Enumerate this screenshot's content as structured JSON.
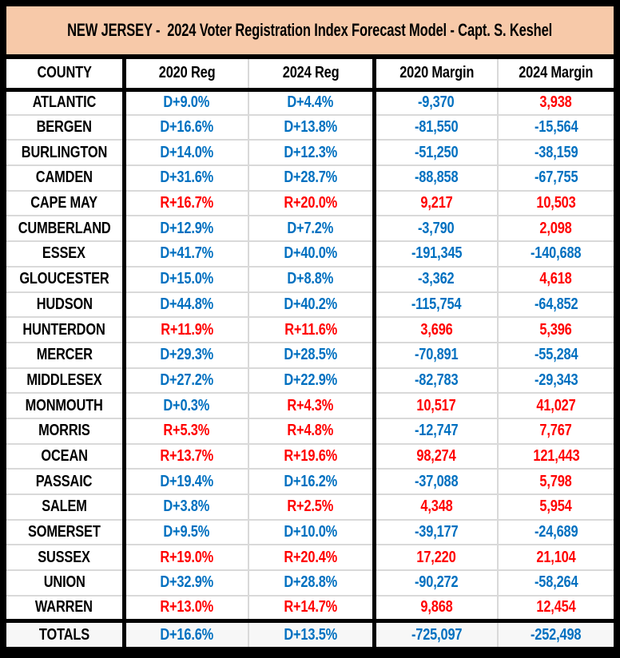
{
  "title": "NEW JERSEY -  2024 Voter Registration Index Forecast Model - Capt. S. Keshel",
  "colors": {
    "democrat_text": "#0070C0",
    "republican_text": "#FF0000",
    "title_background": "#F7C9A9",
    "frame_border": "#000000",
    "row_divider": "#D9D9D9"
  },
  "chart_data": {
    "type": "table",
    "title": "NEW JERSEY - 2024 Voter Registration Index Forecast Model - Capt. S. Keshel",
    "columns": [
      "COUNTY",
      "2020 Reg",
      "2024 Reg",
      "2020 Margin",
      "2024 Margin"
    ],
    "rows": [
      {
        "county": "ATLANTIC",
        "values": [
          {
            "text": "D+9.0%",
            "party": "D"
          },
          {
            "text": "D+4.4%",
            "party": "D"
          },
          {
            "text": "-9,370",
            "party": "D"
          },
          {
            "text": "3,938",
            "party": "R"
          }
        ]
      },
      {
        "county": "BERGEN",
        "values": [
          {
            "text": "D+16.6%",
            "party": "D"
          },
          {
            "text": "D+13.8%",
            "party": "D"
          },
          {
            "text": "-81,550",
            "party": "D"
          },
          {
            "text": "-15,564",
            "party": "D"
          }
        ]
      },
      {
        "county": "BURLINGTON",
        "values": [
          {
            "text": "D+14.0%",
            "party": "D"
          },
          {
            "text": "D+12.3%",
            "party": "D"
          },
          {
            "text": "-51,250",
            "party": "D"
          },
          {
            "text": "-38,159",
            "party": "D"
          }
        ]
      },
      {
        "county": "CAMDEN",
        "values": [
          {
            "text": "D+31.6%",
            "party": "D"
          },
          {
            "text": "D+28.7%",
            "party": "D"
          },
          {
            "text": "-88,858",
            "party": "D"
          },
          {
            "text": "-67,755",
            "party": "D"
          }
        ]
      },
      {
        "county": "CAPE MAY",
        "values": [
          {
            "text": "R+16.7%",
            "party": "R"
          },
          {
            "text": "R+20.0%",
            "party": "R"
          },
          {
            "text": "9,217",
            "party": "R"
          },
          {
            "text": "10,503",
            "party": "R"
          }
        ]
      },
      {
        "county": "CUMBERLAND",
        "values": [
          {
            "text": "D+12.9%",
            "party": "D"
          },
          {
            "text": "D+7.2%",
            "party": "D"
          },
          {
            "text": "-3,790",
            "party": "D"
          },
          {
            "text": "2,098",
            "party": "R"
          }
        ]
      },
      {
        "county": "ESSEX",
        "values": [
          {
            "text": "D+41.7%",
            "party": "D"
          },
          {
            "text": "D+40.0%",
            "party": "D"
          },
          {
            "text": "-191,345",
            "party": "D"
          },
          {
            "text": "-140,688",
            "party": "D"
          }
        ]
      },
      {
        "county": "GLOUCESTER",
        "values": [
          {
            "text": "D+15.0%",
            "party": "D"
          },
          {
            "text": "D+8.8%",
            "party": "D"
          },
          {
            "text": "-3,362",
            "party": "D"
          },
          {
            "text": "4,618",
            "party": "R"
          }
        ]
      },
      {
        "county": "HUDSON",
        "values": [
          {
            "text": "D+44.8%",
            "party": "D"
          },
          {
            "text": "D+40.2%",
            "party": "D"
          },
          {
            "text": "-115,754",
            "party": "D"
          },
          {
            "text": "-64,852",
            "party": "D"
          }
        ]
      },
      {
        "county": "HUNTERDON",
        "values": [
          {
            "text": "R+11.9%",
            "party": "R"
          },
          {
            "text": "R+11.6%",
            "party": "R"
          },
          {
            "text": "3,696",
            "party": "R"
          },
          {
            "text": "5,396",
            "party": "R"
          }
        ]
      },
      {
        "county": "MERCER",
        "values": [
          {
            "text": "D+29.3%",
            "party": "D"
          },
          {
            "text": "D+28.5%",
            "party": "D"
          },
          {
            "text": "-70,891",
            "party": "D"
          },
          {
            "text": "-55,284",
            "party": "D"
          }
        ]
      },
      {
        "county": "MIDDLESEX",
        "values": [
          {
            "text": "D+27.2%",
            "party": "D"
          },
          {
            "text": "D+22.9%",
            "party": "D"
          },
          {
            "text": "-82,783",
            "party": "D"
          },
          {
            "text": "-29,343",
            "party": "D"
          }
        ]
      },
      {
        "county": "MONMOUTH",
        "values": [
          {
            "text": "D+0.3%",
            "party": "D"
          },
          {
            "text": "R+4.3%",
            "party": "R"
          },
          {
            "text": "10,517",
            "party": "R"
          },
          {
            "text": "41,027",
            "party": "R"
          }
        ]
      },
      {
        "county": "MORRIS",
        "values": [
          {
            "text": "R+5.3%",
            "party": "R"
          },
          {
            "text": "R+4.8%",
            "party": "R"
          },
          {
            "text": "-12,747",
            "party": "D"
          },
          {
            "text": "7,767",
            "party": "R"
          }
        ]
      },
      {
        "county": "OCEAN",
        "values": [
          {
            "text": "R+13.7%",
            "party": "R"
          },
          {
            "text": "R+19.6%",
            "party": "R"
          },
          {
            "text": "98,274",
            "party": "R"
          },
          {
            "text": "121,443",
            "party": "R"
          }
        ]
      },
      {
        "county": "PASSAIC",
        "values": [
          {
            "text": "D+19.4%",
            "party": "D"
          },
          {
            "text": "D+16.2%",
            "party": "D"
          },
          {
            "text": "-37,088",
            "party": "D"
          },
          {
            "text": "5,798",
            "party": "R"
          }
        ]
      },
      {
        "county": "SALEM",
        "values": [
          {
            "text": "D+3.8%",
            "party": "D"
          },
          {
            "text": "R+2.5%",
            "party": "R"
          },
          {
            "text": "4,348",
            "party": "R"
          },
          {
            "text": "5,954",
            "party": "R"
          }
        ]
      },
      {
        "county": "SOMERSET",
        "values": [
          {
            "text": "D+9.5%",
            "party": "D"
          },
          {
            "text": "D+10.0%",
            "party": "D"
          },
          {
            "text": "-39,177",
            "party": "D"
          },
          {
            "text": "-24,689",
            "party": "D"
          }
        ]
      },
      {
        "county": "SUSSEX",
        "values": [
          {
            "text": "R+19.0%",
            "party": "R"
          },
          {
            "text": "R+20.4%",
            "party": "R"
          },
          {
            "text": "17,220",
            "party": "R"
          },
          {
            "text": "21,104",
            "party": "R"
          }
        ]
      },
      {
        "county": "UNION",
        "values": [
          {
            "text": "D+32.9%",
            "party": "D"
          },
          {
            "text": "D+28.8%",
            "party": "D"
          },
          {
            "text": "-90,272",
            "party": "D"
          },
          {
            "text": "-58,264",
            "party": "D"
          }
        ]
      },
      {
        "county": "WARREN",
        "values": [
          {
            "text": "R+13.0%",
            "party": "R"
          },
          {
            "text": "R+14.7%",
            "party": "R"
          },
          {
            "text": "9,868",
            "party": "R"
          },
          {
            "text": "12,454",
            "party": "R"
          }
        ]
      }
    ],
    "totals": {
      "label": "TOTALS",
      "values": [
        {
          "text": "D+16.6%",
          "party": "D"
        },
        {
          "text": "D+13.5%",
          "party": "D"
        },
        {
          "text": "-725,097",
          "party": "D"
        },
        {
          "text": "-252,498",
          "party": "D"
        }
      ]
    }
  }
}
